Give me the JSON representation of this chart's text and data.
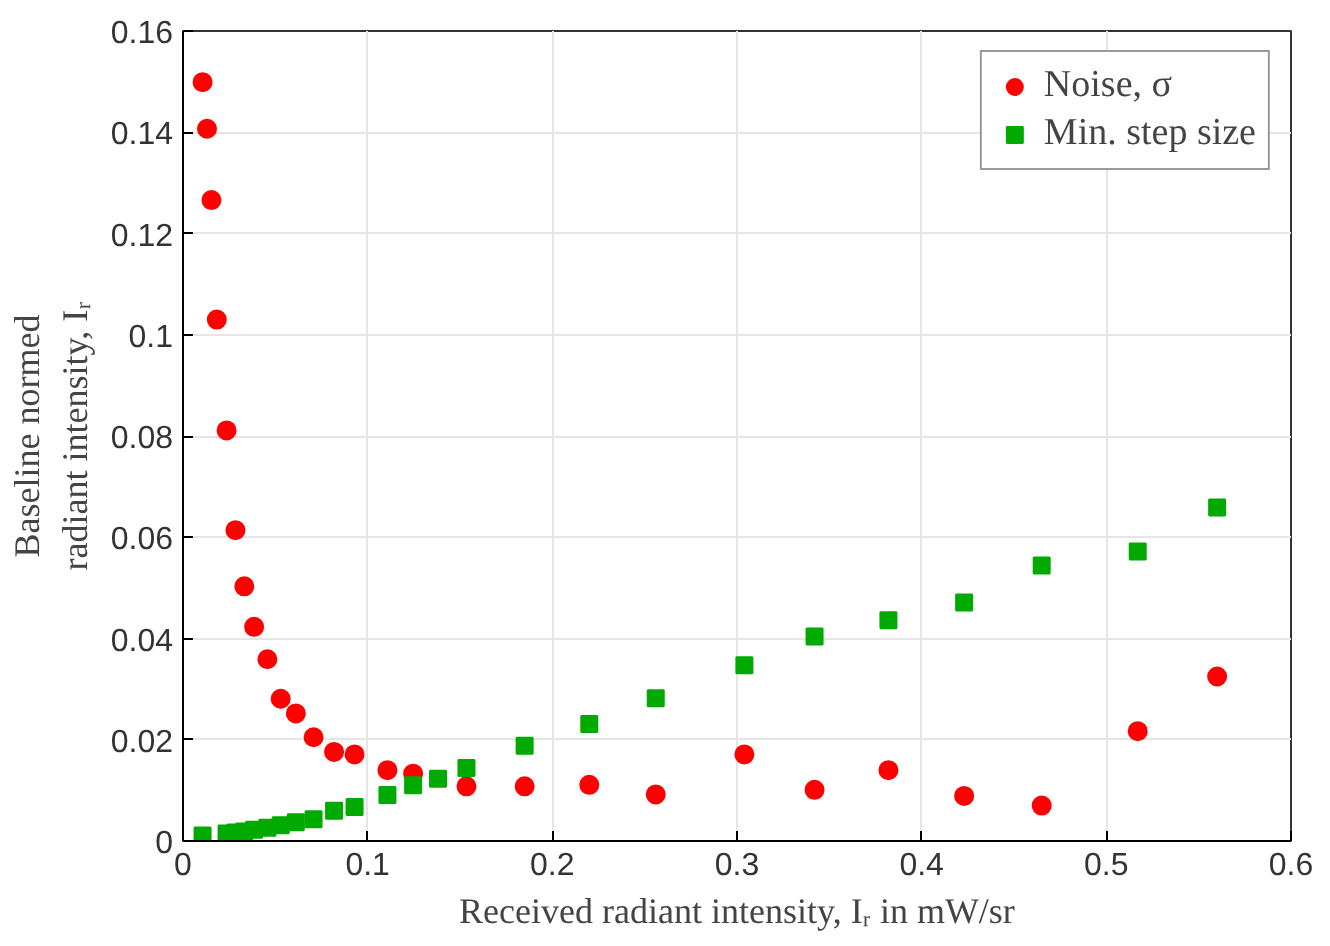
{
  "chart_data": {
    "type": "scatter",
    "xlabel": "Received radiant intensity, Iᵣ in mW/sr",
    "ylabel": "Baseline normed\nradiant intensity, Iᵣ",
    "xlim": [
      0,
      0.6
    ],
    "ylim": [
      0,
      0.16
    ],
    "xticks": [
      0,
      0.1,
      0.2,
      0.3,
      0.4,
      0.5,
      0.6
    ],
    "yticks": [
      0,
      0.02,
      0.04,
      0.06,
      0.08,
      0.1,
      0.12,
      0.14,
      0.16
    ],
    "grid": true,
    "legend": "top right",
    "series": [
      {
        "name": "Noise, σ",
        "color": "#ff0000",
        "marker": "circle",
        "x": [
          0.0106,
          0.013,
          0.0154,
          0.0183,
          0.0236,
          0.0284,
          0.0332,
          0.0385,
          0.0457,
          0.0529,
          0.0611,
          0.0707,
          0.0818,
          0.0929,
          0.1107,
          0.1246,
          0.1535,
          0.185,
          0.22,
          0.256,
          0.304,
          0.342,
          0.382,
          0.423,
          0.465,
          0.517,
          0.56
        ],
        "values": [
          0.1499,
          0.1407,
          0.1266,
          0.103,
          0.0811,
          0.0614,
          0.0503,
          0.0423,
          0.0359,
          0.0281,
          0.0252,
          0.0205,
          0.0176,
          0.0171,
          0.014,
          0.0133,
          0.0108,
          0.0108,
          0.0111,
          0.0092,
          0.0171,
          0.0101,
          0.014,
          0.0089,
          0.007,
          0.0217,
          0.0325
        ]
      },
      {
        "name": "Min. step size",
        "color": "#00aa00",
        "marker": "square",
        "x": [
          0.0106,
          0.0236,
          0.0284,
          0.0332,
          0.0385,
          0.0457,
          0.0529,
          0.0611,
          0.0707,
          0.0818,
          0.0929,
          0.1107,
          0.1246,
          0.1381,
          0.1535,
          0.185,
          0.22,
          0.256,
          0.304,
          0.342,
          0.382,
          0.423,
          0.465,
          0.517,
          0.56
        ],
        "values": [
          0.0011,
          0.0015,
          0.0017,
          0.0019,
          0.0022,
          0.0026,
          0.0031,
          0.0037,
          0.0043,
          0.006,
          0.0067,
          0.0091,
          0.011,
          0.0123,
          0.0144,
          0.0188,
          0.0231,
          0.0282,
          0.0347,
          0.0404,
          0.0436,
          0.0471,
          0.0544,
          0.0572,
          0.0659
        ]
      }
    ]
  }
}
